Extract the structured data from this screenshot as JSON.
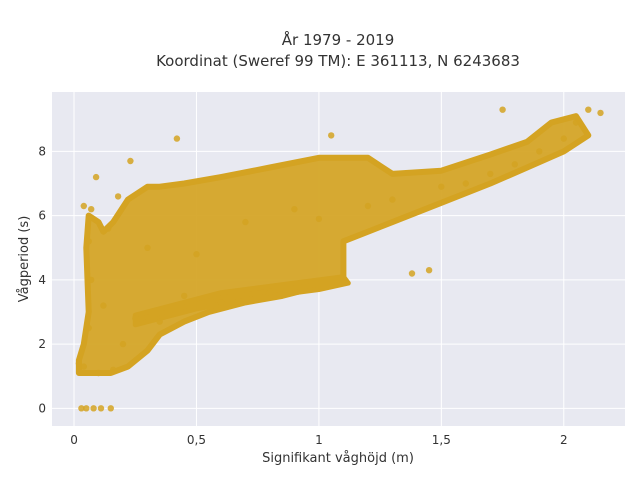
{
  "chart_data": {
    "type": "scatter",
    "title_line1": "År 1979 - 2019",
    "title_line2": "Koordinat (Sweref 99 TM): E 361113, N 6243683",
    "xlabel": "Signifikant våghöjd (m)",
    "ylabel": "Vågperiod (s)",
    "xlim": [
      -0.09,
      2.25
    ],
    "ylim": [
      -0.55,
      9.85
    ],
    "x_ticks": [
      0,
      0.5,
      1,
      1.5,
      2
    ],
    "x_tick_labels": [
      "0",
      "0,5",
      "1",
      "1,5",
      "2"
    ],
    "y_ticks": [
      0,
      2,
      4,
      6,
      8
    ],
    "y_tick_labels": [
      "0",
      "2",
      "4",
      "6",
      "8"
    ],
    "grid": true,
    "marker_color": "#D4A322",
    "plot_background": "#E8E9F1",
    "representative_points": [
      {
        "x": 0.03,
        "y": 0.0
      },
      {
        "x": 0.05,
        "y": 0.0
      },
      {
        "x": 0.08,
        "y": 0.0
      },
      {
        "x": 0.11,
        "y": 0.0
      },
      {
        "x": 0.15,
        "y": 0.0
      },
      {
        "x": 0.02,
        "y": 1.4
      },
      {
        "x": 0.04,
        "y": 1.3
      },
      {
        "x": 0.06,
        "y": 2.5
      },
      {
        "x": 0.07,
        "y": 4.0
      },
      {
        "x": 0.06,
        "y": 5.2
      },
      {
        "x": 0.04,
        "y": 6.3
      },
      {
        "x": 0.07,
        "y": 6.2
      },
      {
        "x": 0.09,
        "y": 7.2
      },
      {
        "x": 0.1,
        "y": 1.1
      },
      {
        "x": 0.12,
        "y": 3.2
      },
      {
        "x": 0.14,
        "y": 5.6
      },
      {
        "x": 0.16,
        "y": 1.2
      },
      {
        "x": 0.18,
        "y": 6.6
      },
      {
        "x": 0.2,
        "y": 2.0
      },
      {
        "x": 0.23,
        "y": 7.7
      },
      {
        "x": 0.25,
        "y": 2.8
      },
      {
        "x": 0.3,
        "y": 5.0
      },
      {
        "x": 0.35,
        "y": 2.7
      },
      {
        "x": 0.42,
        "y": 8.4
      },
      {
        "x": 0.45,
        "y": 3.5
      },
      {
        "x": 0.5,
        "y": 4.8
      },
      {
        "x": 0.6,
        "y": 3.3
      },
      {
        "x": 0.7,
        "y": 5.8
      },
      {
        "x": 0.8,
        "y": 3.6
      },
      {
        "x": 0.9,
        "y": 6.2
      },
      {
        "x": 1.0,
        "y": 5.9
      },
      {
        "x": 1.05,
        "y": 8.5
      },
      {
        "x": 1.1,
        "y": 4.0
      },
      {
        "x": 1.2,
        "y": 6.3
      },
      {
        "x": 1.3,
        "y": 6.5
      },
      {
        "x": 1.38,
        "y": 4.2
      },
      {
        "x": 1.45,
        "y": 4.3
      },
      {
        "x": 1.5,
        "y": 6.9
      },
      {
        "x": 1.6,
        "y": 7.0
      },
      {
        "x": 1.7,
        "y": 7.3
      },
      {
        "x": 1.75,
        "y": 9.3
      },
      {
        "x": 1.8,
        "y": 7.6
      },
      {
        "x": 1.9,
        "y": 8.0
      },
      {
        "x": 2.0,
        "y": 8.4
      },
      {
        "x": 2.05,
        "y": 8.9
      },
      {
        "x": 2.1,
        "y": 9.3
      },
      {
        "x": 2.15,
        "y": 9.2
      }
    ]
  }
}
